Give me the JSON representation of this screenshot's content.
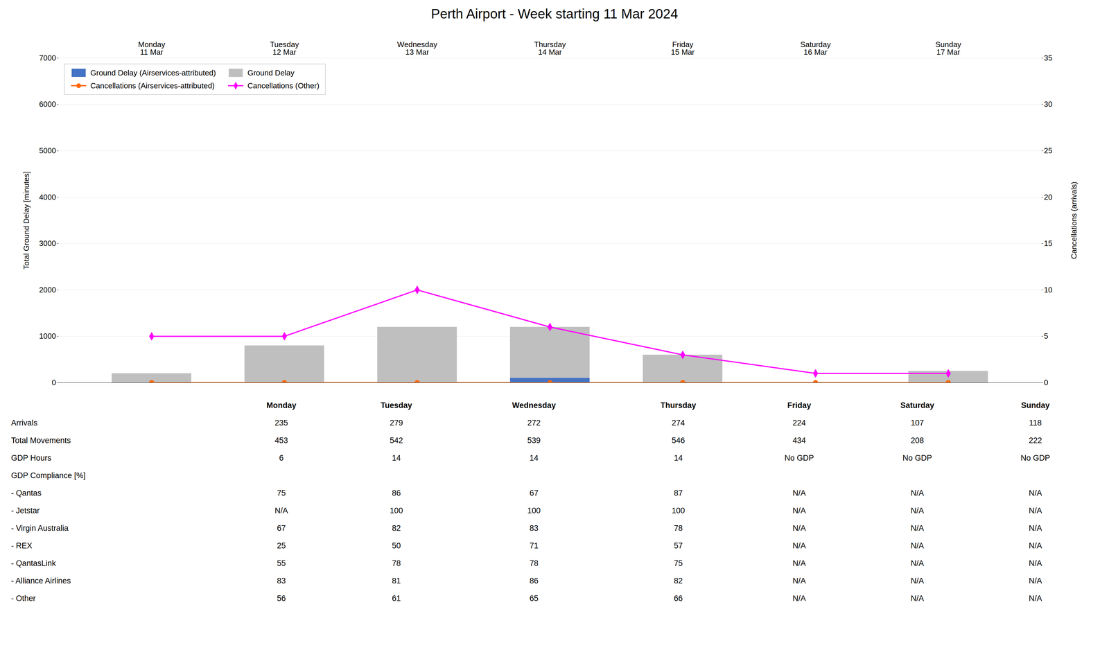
{
  "chart_data": {
    "type": "bar",
    "title": "Perth Airport - Week starting 11 Mar 2024",
    "categories": [
      "Monday\n11 Mar",
      "Tuesday\n12 Mar",
      "Wednesday\n13 Mar",
      "Thursday\n14 Mar",
      "Friday\n15 Mar",
      "Saturday\n16 Mar",
      "Sunday\n17 Mar"
    ],
    "ylabel": "Total Ground Delay [minutes]",
    "y2label": "Cancellations (arrivals)",
    "ylim": [
      0,
      7000
    ],
    "yticks": [
      0,
      1000,
      2000,
      3000,
      4000,
      5000,
      6000,
      7000
    ],
    "y2lim": [
      0,
      35
    ],
    "y2ticks": [
      0,
      5,
      10,
      15,
      20,
      25,
      30,
      35
    ],
    "grid": true,
    "legend": "upper left",
    "stacked": false,
    "series": [
      {
        "name": "Ground Delay (Airservices-attributed)",
        "type": "bar",
        "color": "#4472C4",
        "values": [
          0,
          0,
          0,
          100,
          0,
          0,
          0
        ]
      },
      {
        "name": "Ground Delay",
        "type": "bar",
        "color": "#BFBFBF",
        "values": [
          200,
          800,
          1200,
          1200,
          600,
          0,
          250
        ]
      },
      {
        "name": "Cancellations (Airservices-attributed)",
        "type": "line",
        "color": "#FF6600",
        "marker": "circle",
        "axis": "y2",
        "values": [
          0,
          0,
          0,
          0,
          0,
          0,
          0
        ]
      },
      {
        "name": "Cancellations (Other)",
        "type": "line",
        "color": "#FF00FF",
        "marker": "diamond",
        "axis": "y2",
        "values": [
          5,
          5,
          10,
          6,
          3,
          1,
          1
        ]
      }
    ],
    "table": {
      "columns": [
        "Monday",
        "Tuesday",
        "Wednesday",
        "Thursday",
        "Friday",
        "Saturday",
        "Sunday"
      ],
      "rows": [
        {
          "label": "Arrivals",
          "values": [
            "235",
            "279",
            "272",
            "274",
            "224",
            "107",
            "118"
          ]
        },
        {
          "label": "Total Movements",
          "values": [
            "453",
            "542",
            "539",
            "546",
            "434",
            "208",
            "222"
          ]
        },
        {
          "label": "GDP Hours",
          "values": [
            "6",
            "14",
            "14",
            "14",
            "No GDP",
            "No GDP",
            "No GDP"
          ]
        },
        {
          "label": "GDP Compliance [%]",
          "values": [
            null,
            null,
            null,
            null,
            null,
            null,
            null
          ]
        },
        {
          "label": "- Qantas",
          "values": [
            "75",
            "86",
            "67",
            "87",
            "N/A",
            "N/A",
            "N/A"
          ]
        },
        {
          "label": "- Jetstar",
          "values": [
            "N/A",
            "100",
            "100",
            "100",
            "N/A",
            "N/A",
            "N/A"
          ]
        },
        {
          "label": "- Virgin Australia",
          "values": [
            "67",
            "82",
            "83",
            "78",
            "N/A",
            "N/A",
            "N/A"
          ]
        },
        {
          "label": "- REX",
          "values": [
            "25",
            "50",
            "71",
            "57",
            "N/A",
            "N/A",
            "N/A"
          ]
        },
        {
          "label": "- QantasLink",
          "values": [
            "55",
            "78",
            "78",
            "75",
            "N/A",
            "N/A",
            "N/A"
          ]
        },
        {
          "label": "- Alliance Airlines",
          "values": [
            "83",
            "81",
            "86",
            "82",
            "N/A",
            "N/A",
            "N/A"
          ]
        },
        {
          "label": "- Other",
          "values": [
            "56",
            "61",
            "65",
            "66",
            "N/A",
            "N/A",
            "N/A"
          ]
        }
      ]
    }
  }
}
